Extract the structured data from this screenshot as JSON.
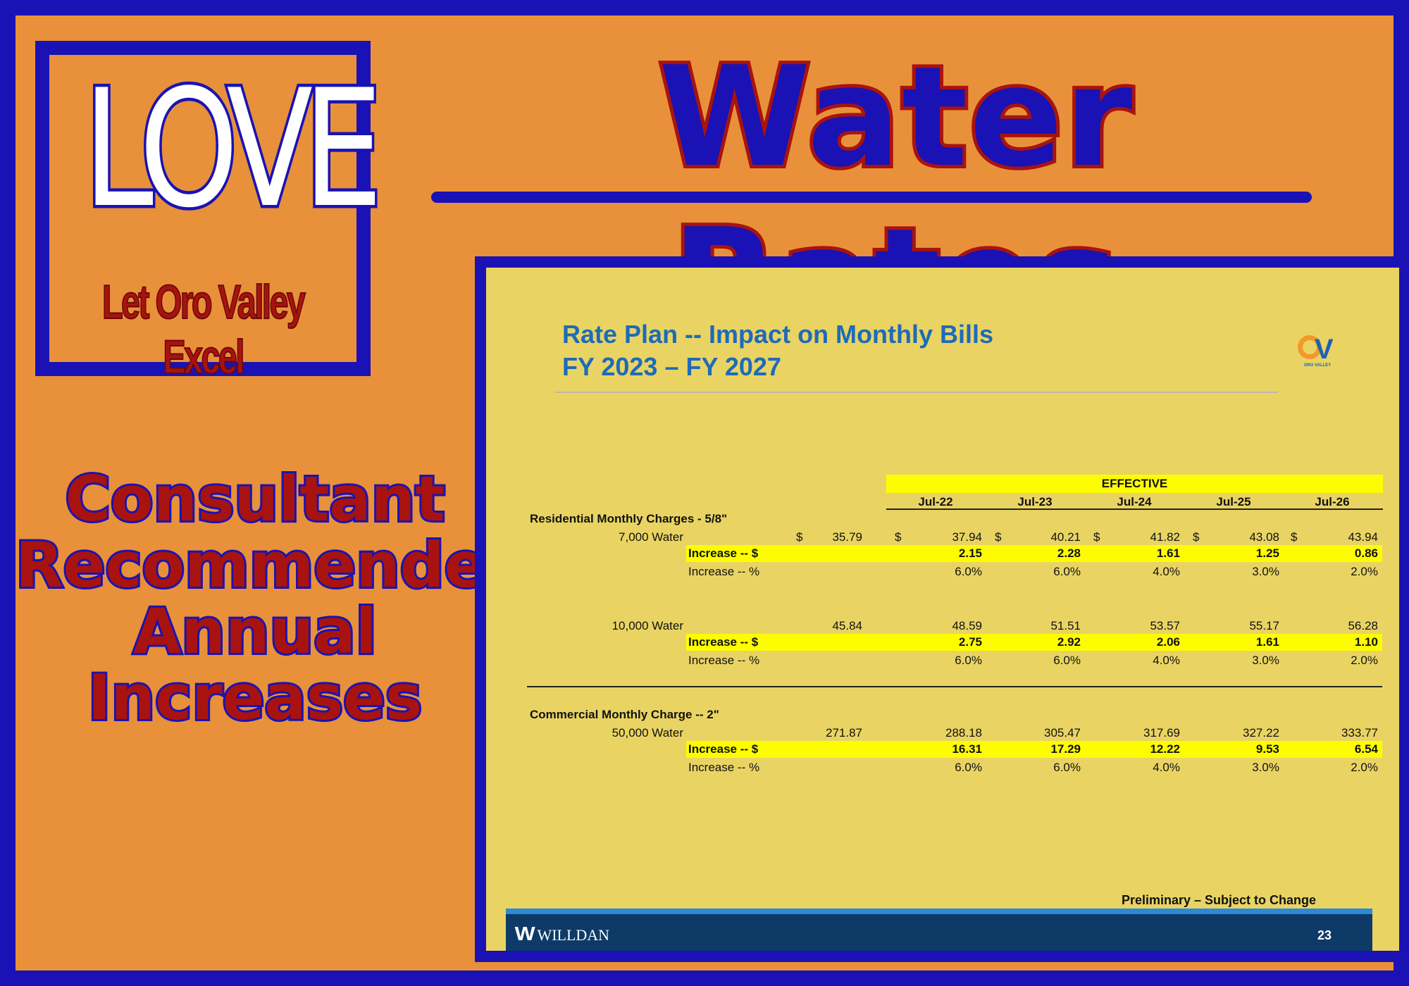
{
  "logo": {
    "word": "LOVE",
    "subtitle": "Let Oro Valley Excel"
  },
  "title": "Water Rates",
  "caption": [
    "Consultant",
    "Recommended",
    "Annual",
    "Increases"
  ],
  "slide": {
    "title_line1": "Rate Plan -- Impact on Monthly Bills",
    "title_line2": "FY 2023 – FY 2027",
    "logo_text": "ORO VALLEY",
    "effective_label": "EFFECTIVE",
    "columns": [
      "Jul-22",
      "Jul-23",
      "Jul-24",
      "Jul-25",
      "Jul-26"
    ],
    "currency_symbol": "$",
    "residential": {
      "heading": "Residential Monthly Charges - 5/8\"",
      "rows": [
        {
          "label": "7,000 Water",
          "current": "35.79",
          "values": [
            "37.94",
            "40.21",
            "41.82",
            "43.08",
            "43.94"
          ],
          "increase_dollar_label": "Increase -- $",
          "increase_dollar": [
            "2.15",
            "2.28",
            "1.61",
            "1.25",
            "0.86"
          ],
          "increase_pct_label": "Increase -- %",
          "increase_pct": [
            "6.0%",
            "6.0%",
            "4.0%",
            "3.0%",
            "2.0%"
          ]
        },
        {
          "label": "10,000 Water",
          "current": "45.84",
          "values": [
            "48.59",
            "51.51",
            "53.57",
            "55.17",
            "56.28"
          ],
          "increase_dollar_label": "Increase -- $",
          "increase_dollar": [
            "2.75",
            "2.92",
            "2.06",
            "1.61",
            "1.10"
          ],
          "increase_pct_label": "Increase -- %",
          "increase_pct": [
            "6.0%",
            "6.0%",
            "4.0%",
            "3.0%",
            "2.0%"
          ]
        }
      ]
    },
    "commercial": {
      "heading": "Commercial Monthly Charge -- 2\"",
      "rows": [
        {
          "label": "50,000 Water",
          "current": "271.87",
          "values": [
            "288.18",
            "305.47",
            "317.69",
            "327.22",
            "333.77"
          ],
          "increase_dollar_label": "Increase -- $",
          "increase_dollar": [
            "16.31",
            "17.29",
            "12.22",
            "9.53",
            "6.54"
          ],
          "increase_pct_label": "Increase -- %",
          "increase_pct": [
            "6.0%",
            "6.0%",
            "4.0%",
            "3.0%",
            "2.0%"
          ]
        }
      ]
    },
    "footer": {
      "note": "Preliminary – Subject to Change",
      "brand": "WILLDAN",
      "page": "23"
    }
  },
  "colors": {
    "blue": "#1a12b4",
    "orange": "#e8913a",
    "red": "#a8130f",
    "slide_bg": "#e9d463",
    "highlight": "#fdfd00"
  }
}
